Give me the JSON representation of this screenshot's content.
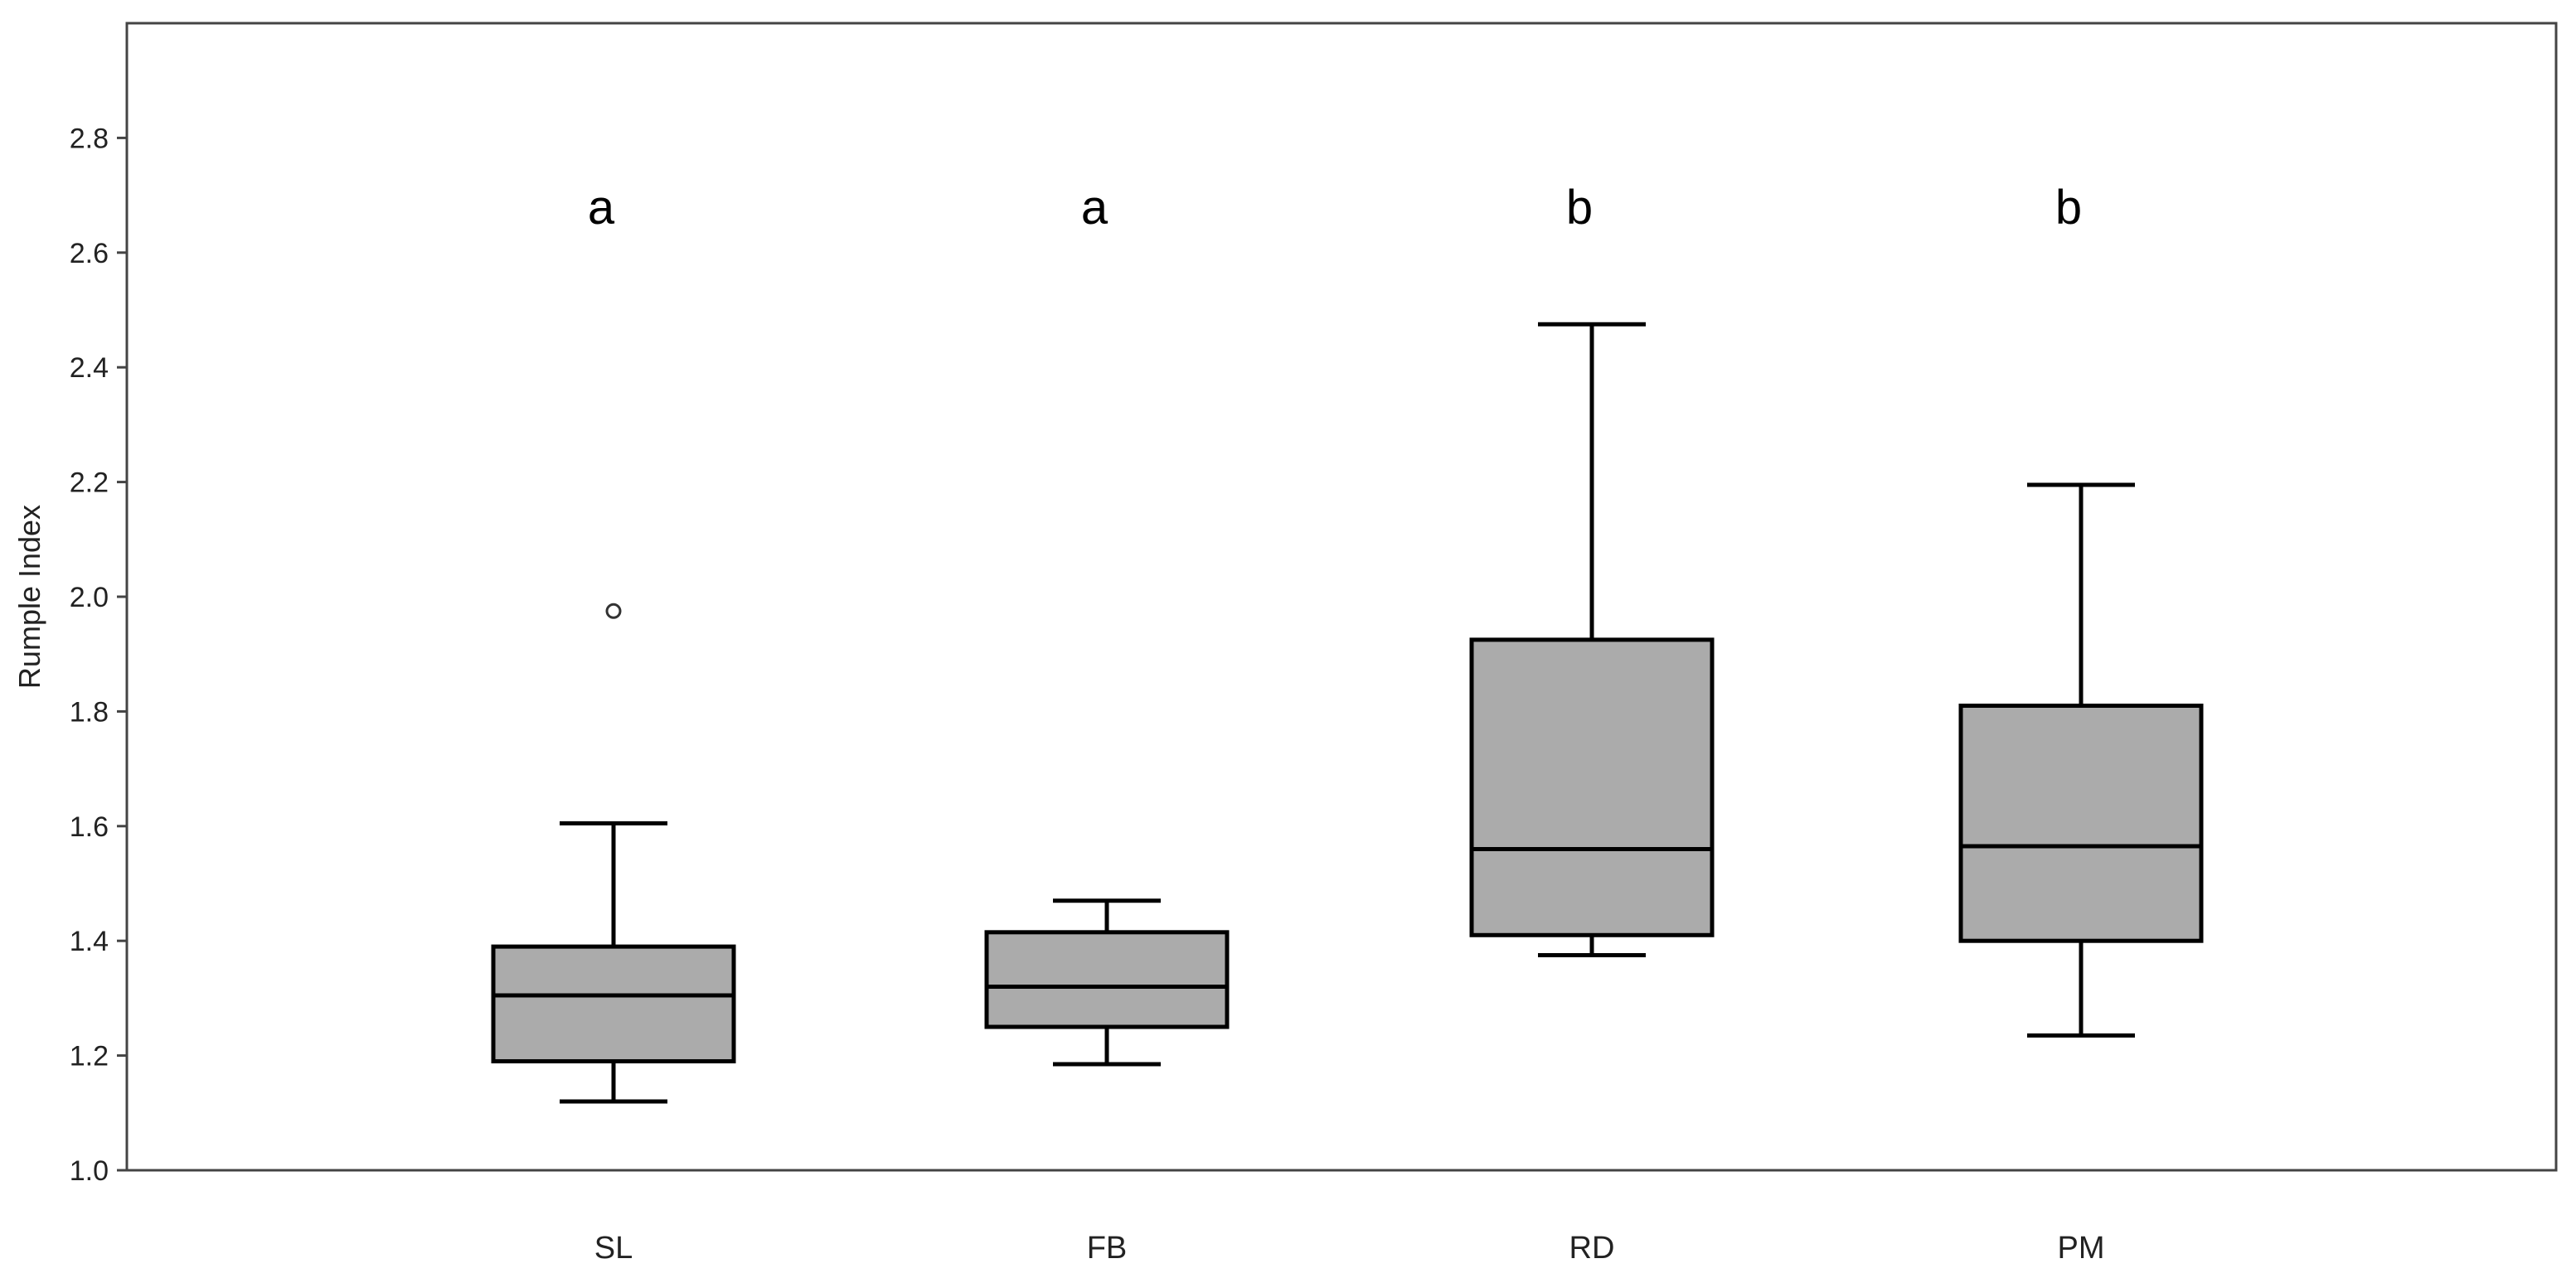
{
  "chart_data": {
    "type": "box",
    "ylabel": "Rumple Index",
    "xlabel": "",
    "ylim": [
      1.0,
      3.0
    ],
    "yticks": [
      1.0,
      1.2,
      1.4,
      1.6,
      1.8,
      2.0,
      2.2,
      2.4,
      2.6,
      2.8
    ],
    "grid": false,
    "box_fill": "#ababab",
    "stroke_color": "#000000",
    "categories": [
      "SL",
      "FB",
      "RD",
      "PM"
    ],
    "boxes": [
      {
        "category": "SL",
        "whisker_low": 1.12,
        "q1": 1.19,
        "median": 1.305,
        "q3": 1.39,
        "whisker_high": 1.605,
        "outliers": [
          1.975
        ],
        "group_letter": "a"
      },
      {
        "category": "FB",
        "whisker_low": 1.185,
        "q1": 1.25,
        "median": 1.32,
        "q3": 1.415,
        "whisker_high": 1.47,
        "outliers": [],
        "group_letter": "a"
      },
      {
        "category": "RD",
        "whisker_low": 1.375,
        "q1": 1.41,
        "median": 1.56,
        "q3": 1.925,
        "whisker_high": 2.475,
        "outliers": [],
        "group_letter": "b"
      },
      {
        "category": "PM",
        "whisker_low": 1.235,
        "q1": 1.4,
        "median": 1.565,
        "q3": 1.81,
        "whisker_high": 2.195,
        "outliers": [],
        "group_letter": "b"
      }
    ]
  }
}
